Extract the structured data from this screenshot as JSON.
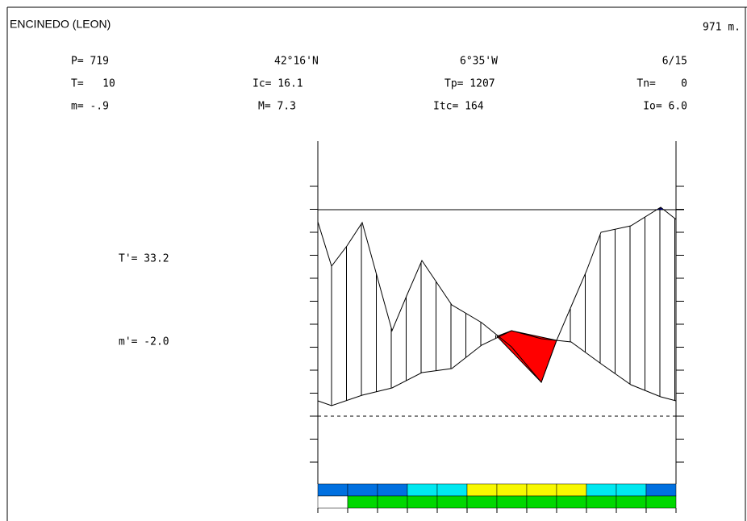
{
  "header": {
    "title": "ENCINEDO (LEON)",
    "altitude": "971 m."
  },
  "stats": {
    "rows": [
      [
        "P= 719",
        "42°16'N",
        "6°35'W",
        "6/15"
      ],
      [
        "T=   10",
        "Ic= 16.1",
        "Tp= 1207",
        "Tn=    0"
      ],
      [
        "m= -.9",
        "M= 7.3",
        "Itc= 164",
        "Io= 6.0"
      ]
    ],
    "t_prime": "T'= 33.2",
    "m_prime": "m'= -2.0"
  }
}
